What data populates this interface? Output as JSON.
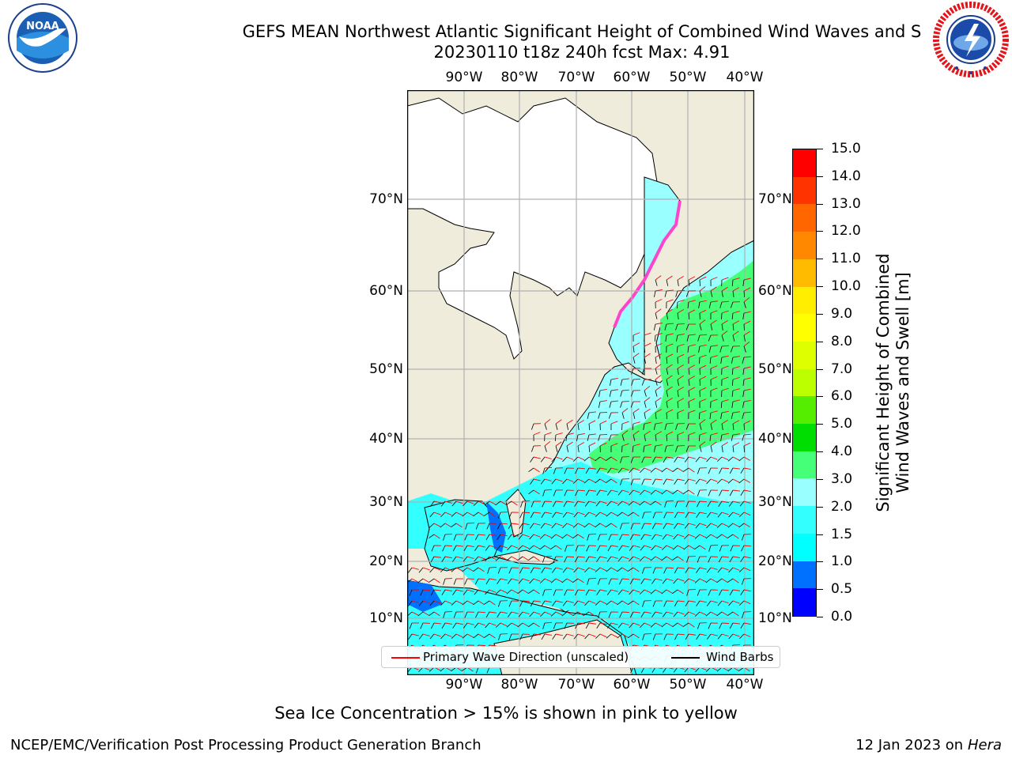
{
  "header": {
    "title_line1": "GEFS MEAN Northwest Atlantic Significant Height of Combined Wind Waves and S",
    "title_line2": "20230110 t18z 240h fcst   Max: 4.91"
  },
  "logos": {
    "left": {
      "name": "noaa-logo",
      "text": "NOAA",
      "ring_text": "NATIONAL OCEANIC AND ATMOSPHERIC ADMINISTRATION · U.S. DEPARTMENT OF COMMERCE"
    },
    "right": {
      "name": "national-weather-service-logo",
      "ring_text": "NATIONAL WEATHER SERVICE"
    }
  },
  "map": {
    "lon_ticks": [
      "90°W",
      "80°W",
      "70°W",
      "60°W",
      "50°W",
      "40°W"
    ],
    "lat_ticks": [
      "70°N",
      "60°N",
      "50°N",
      "40°N",
      "30°N",
      "20°N",
      "10°N"
    ],
    "land_color": "#efecdc",
    "ice_free_ocean_color": "#ffffff",
    "gridline_color": "#b0b0b0",
    "wave_direction_color": "#ff0000",
    "wind_barb_color": "#000000"
  },
  "colorbar": {
    "ticks": [
      "0.0",
      "0.5",
      "1.0",
      "1.5",
      "2.0",
      "3.0",
      "4.0",
      "5.0",
      "6.0",
      "7.0",
      "8.0",
      "9.0",
      "10.0",
      "11.0",
      "12.0",
      "13.0",
      "14.0",
      "15.0"
    ],
    "colors": [
      "#0000ff",
      "#0070ff",
      "#00ffff",
      "#33ffff",
      "#99ffff",
      "#44ff77",
      "#00dd00",
      "#55ee00",
      "#bbff00",
      "#ddff00",
      "#ffff00",
      "#ffee00",
      "#ffbb00",
      "#ff8800",
      "#ff6600",
      "#ff3300",
      "#ff0000"
    ],
    "label_line1": "Significant Height of Combined",
    "label_line2": "Wind Waves and Swell [m]"
  },
  "legend": {
    "wave_label": "Primary Wave Direction (unscaled)",
    "wave_color": "#ff0000",
    "barb_label": "Wind Barbs",
    "barb_color": "#000000"
  },
  "footnote": "Sea Ice Concentration > 15% is shown in pink to yellow",
  "footer": {
    "left": "NCEP/EMC/Verification Post Processing Product Generation Branch",
    "right_date": "12 Jan 2023 on",
    "right_host": "Hera"
  }
}
